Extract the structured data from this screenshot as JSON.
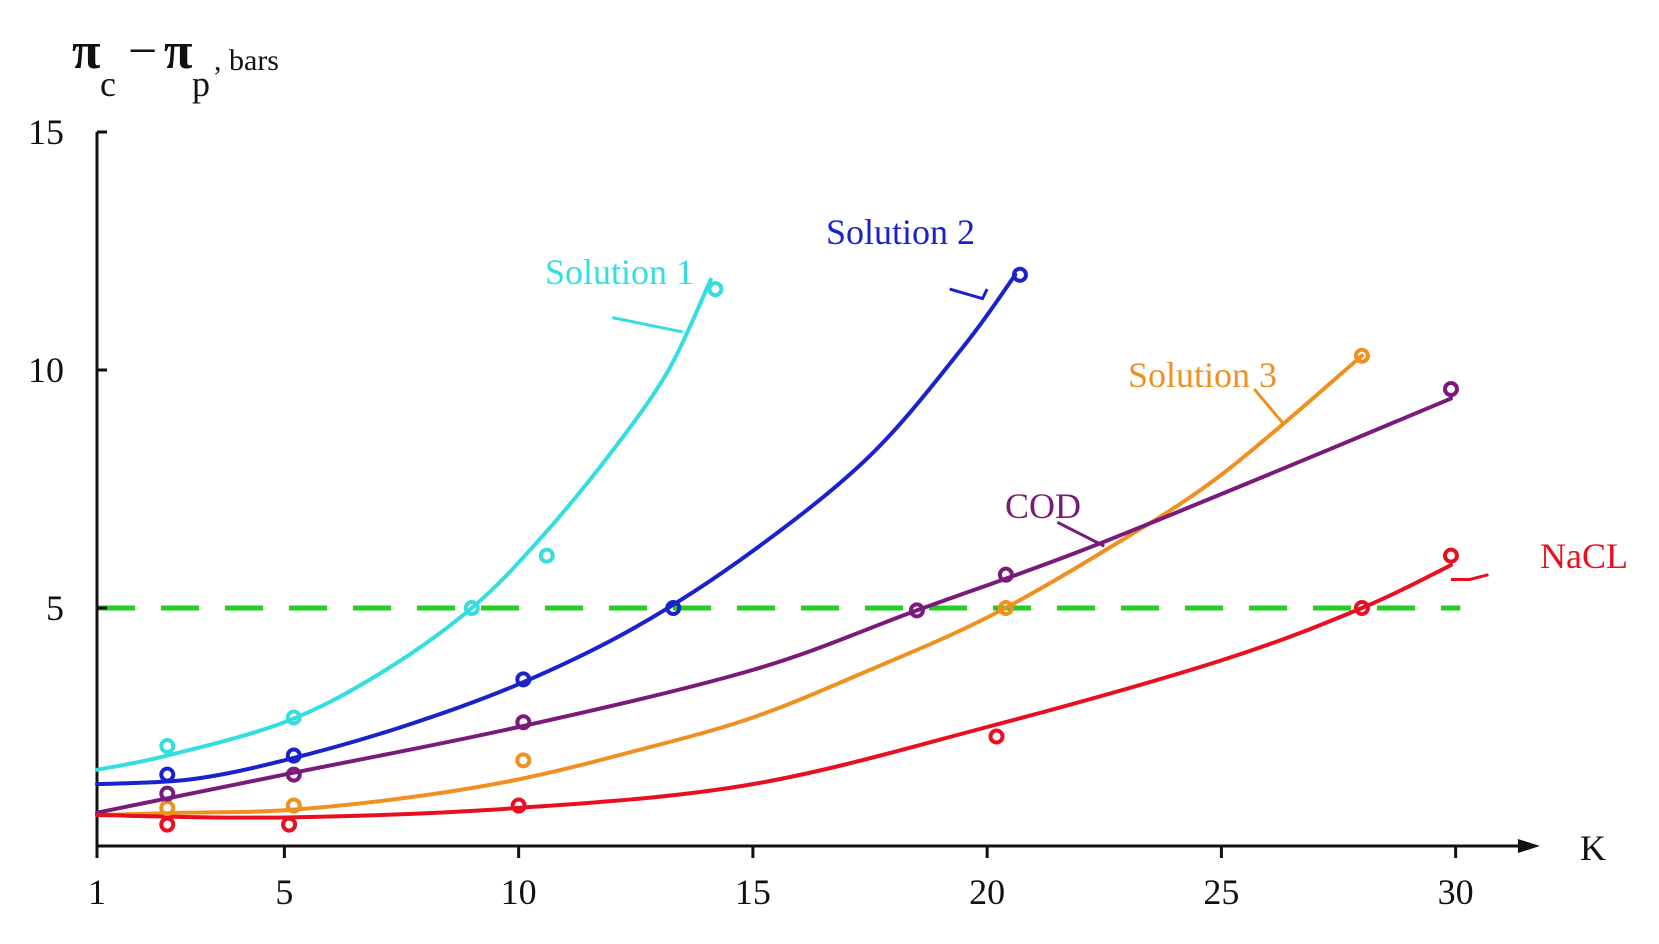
{
  "chart_data": {
    "type": "line",
    "ylabel": {
      "main": "π",
      "sub1": "c",
      "minus": "−",
      "main2": "π",
      "sub2": "p",
      "units": ", bars"
    },
    "xlabel": "K",
    "xlim": [
      1,
      31.5
    ],
    "ylim": [
      0,
      15
    ],
    "x_ticks": [
      {
        "value": 1,
        "label": "1"
      },
      {
        "value": 5,
        "label": "5"
      },
      {
        "value": 10,
        "label": "10"
      },
      {
        "value": 15,
        "label": "15"
      },
      {
        "value": 20,
        "label": "20"
      },
      {
        "value": 25,
        "label": "25"
      },
      {
        "value": 30,
        "label": "30"
      }
    ],
    "y_ticks": [
      {
        "value": 5,
        "label": "5"
      },
      {
        "value": 10,
        "label": "10"
      },
      {
        "value": 15,
        "label": "15"
      }
    ],
    "reference_line": {
      "y": 5,
      "color": "#22cc22",
      "style": "dashed"
    },
    "series": [
      {
        "name": "Solution 1",
        "color": "#33dde0",
        "points": [
          [
            2.5,
            2.1
          ],
          [
            5.2,
            2.7
          ],
          [
            9.0,
            5.0
          ],
          [
            10.6,
            6.1
          ],
          [
            14.2,
            11.7
          ]
        ],
        "curve": [
          [
            1.0,
            1.6
          ],
          [
            2.5,
            1.9
          ],
          [
            5.0,
            2.6
          ],
          [
            7.0,
            3.6
          ],
          [
            9.0,
            5.0
          ],
          [
            10.5,
            6.5
          ],
          [
            12.0,
            8.3
          ],
          [
            13.2,
            10.0
          ],
          [
            14.1,
            11.9
          ]
        ]
      },
      {
        "name": "Solution 2",
        "color": "#1a22cc",
        "points": [
          [
            2.5,
            1.5
          ],
          [
            5.2,
            1.9
          ],
          [
            10.1,
            3.5
          ],
          [
            13.3,
            5.0
          ],
          [
            20.7,
            12.0
          ]
        ],
        "curve": [
          [
            1.0,
            1.3
          ],
          [
            3.0,
            1.4
          ],
          [
            5.0,
            1.8
          ],
          [
            7.5,
            2.5
          ],
          [
            10.0,
            3.4
          ],
          [
            12.5,
            4.6
          ],
          [
            15.0,
            6.2
          ],
          [
            17.5,
            8.2
          ],
          [
            19.5,
            10.5
          ],
          [
            20.6,
            12.0
          ]
        ]
      },
      {
        "name": "Solution 3",
        "color": "#f09020",
        "points": [
          [
            2.5,
            0.8
          ],
          [
            5.2,
            0.85
          ],
          [
            10.1,
            1.8
          ],
          [
            20.4,
            5.0
          ],
          [
            28.0,
            10.3
          ]
        ],
        "curve": [
          [
            1.0,
            0.65
          ],
          [
            3.0,
            0.7
          ],
          [
            5.0,
            0.75
          ],
          [
            7.5,
            1.0
          ],
          [
            10.0,
            1.4
          ],
          [
            12.5,
            2.0
          ],
          [
            15.0,
            2.7
          ],
          [
            17.5,
            3.7
          ],
          [
            20.0,
            4.8
          ],
          [
            22.5,
            6.2
          ],
          [
            25.0,
            7.8
          ],
          [
            28.0,
            10.3
          ]
        ]
      },
      {
        "name": "COD",
        "color": "#7a1a7a",
        "points": [
          [
            2.5,
            1.1
          ],
          [
            5.2,
            1.5
          ],
          [
            10.1,
            2.6
          ],
          [
            18.5,
            4.95
          ],
          [
            20.4,
            5.7
          ],
          [
            29.9,
            9.6
          ]
        ],
        "curve": [
          [
            1.0,
            0.7
          ],
          [
            5.0,
            1.5
          ],
          [
            10.0,
            2.5
          ],
          [
            15.0,
            3.7
          ],
          [
            18.5,
            4.95
          ],
          [
            22.0,
            6.2
          ],
          [
            26.0,
            7.8
          ],
          [
            29.9,
            9.4
          ]
        ]
      },
      {
        "name": "NaCL",
        "color": "#e81020",
        "points": [
          [
            2.5,
            0.45
          ],
          [
            5.1,
            0.45
          ],
          [
            10.0,
            0.85
          ],
          [
            20.2,
            2.3
          ],
          [
            28.0,
            5.0
          ],
          [
            29.9,
            6.1
          ]
        ],
        "curve": [
          [
            1.0,
            0.65
          ],
          [
            5.0,
            0.6
          ],
          [
            10.0,
            0.8
          ],
          [
            15.0,
            1.3
          ],
          [
            20.0,
            2.5
          ],
          [
            25.0,
            3.9
          ],
          [
            28.0,
            5.0
          ],
          [
            29.9,
            5.9
          ]
        ]
      }
    ],
    "annotations": [
      {
        "series": "Solution 1",
        "text": "Solution 1",
        "leader": [
          [
            12.0,
            11.1
          ],
          [
            13.5,
            10.8
          ]
        ]
      },
      {
        "series": "Solution 2",
        "text": "Solution 2",
        "leader": [
          [
            19.2,
            11.7
          ],
          [
            19.9,
            11.5
          ],
          [
            20.0,
            11.7
          ]
        ]
      },
      {
        "series": "Solution 3",
        "text": "Solution 3",
        "leader": [
          [
            25.7,
            9.6
          ],
          [
            26.3,
            8.9
          ]
        ]
      },
      {
        "series": "COD",
        "text": "COD",
        "leader": [
          [
            21.5,
            6.8
          ],
          [
            22.5,
            6.3
          ]
        ]
      },
      {
        "series": "NaCL",
        "text": "NaCL",
        "leader": [
          [
            30.7,
            5.7
          ],
          [
            30.3,
            5.6
          ],
          [
            29.9,
            5.6
          ]
        ]
      }
    ]
  }
}
